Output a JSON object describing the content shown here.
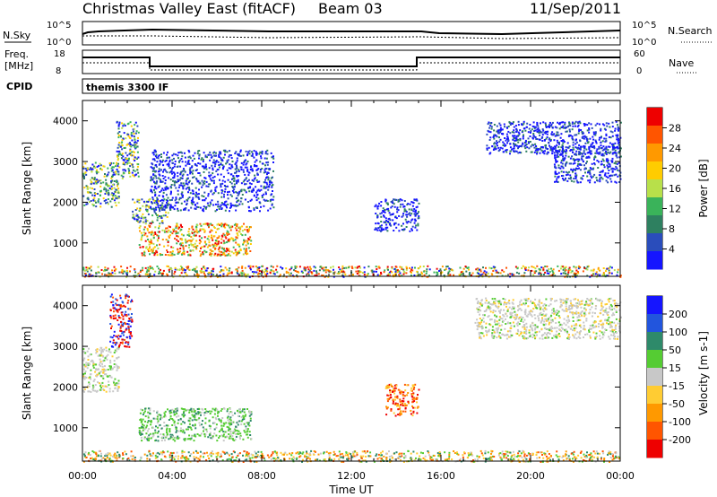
{
  "header": {
    "title": "Christmas Valley East (fitACF)",
    "beam": "Beam 03",
    "date": "11/Sep/2011"
  },
  "strip_panels": {
    "nsky": {
      "left_label": "N.Sky",
      "right_label": "N.Search",
      "left_ticks": [
        "10^5",
        "10^0"
      ],
      "right_ticks": [
        "10^5",
        "10^0"
      ]
    },
    "freq": {
      "left_label_1": "Freq.",
      "left_label_2": "[MHz]",
      "right_label": "Nave",
      "left_ticks": [
        "18",
        "8"
      ],
      "right_ticks": [
        "60",
        "0"
      ],
      "cpid_label": "CPID",
      "program": "themis 3300 IF"
    }
  },
  "colors": {
    "power": [
      "#1515ff",
      "#2a4dbb",
      "#2e8060",
      "#3ab35a",
      "#b8e04a",
      "#ffcc00",
      "#ff9900",
      "#ff5500",
      "#ee0000"
    ],
    "velocity": [
      "#1515ff",
      "#2255dd",
      "#2e8a6a",
      "#55cc33",
      "#c8c8c8",
      "#ffcc33",
      "#ff9900",
      "#ff5500",
      "#ee0000"
    ]
  },
  "chart_data": [
    {
      "type": "heatmap",
      "title": "Power",
      "xlabel": "Time UT",
      "ylabel": "Slant Range [km]",
      "xlim": [
        0,
        24
      ],
      "ylim": [
        180,
        4500
      ],
      "x_ticks": [
        "00:00",
        "04:00",
        "08:00",
        "12:00",
        "16:00",
        "20:00",
        "00:00"
      ],
      "y_ticks": [
        "1000",
        "2000",
        "3000",
        "4000"
      ],
      "colorbar_label": "Power [dB]",
      "colorbar_ticks": [
        "4",
        "8",
        "12",
        "16",
        "20",
        "24",
        "28"
      ],
      "regions": [
        {
          "t": [
            0.0,
            1.6
          ],
          "r": [
            1900,
            3000
          ],
          "level": "medium"
        },
        {
          "t": [
            1.5,
            2.5
          ],
          "r": [
            2600,
            4000
          ],
          "level": "medium"
        },
        {
          "t": [
            2.2,
            3.8
          ],
          "r": [
            1500,
            2100
          ],
          "level": "medium"
        },
        {
          "t": [
            2.5,
            7.5
          ],
          "r": [
            700,
            1500
          ],
          "level": "high"
        },
        {
          "t": [
            3.0,
            8.5
          ],
          "r": [
            1800,
            3300
          ],
          "level": "low"
        },
        {
          "t": [
            13.0,
            15.0
          ],
          "r": [
            1300,
            2100
          ],
          "level": "low"
        },
        {
          "t": [
            18.0,
            24.0
          ],
          "r": [
            3200,
            4000
          ],
          "level": "low"
        },
        {
          "t": [
            21.0,
            24.0
          ],
          "r": [
            2500,
            3400
          ],
          "level": "low"
        },
        {
          "t": [
            0.0,
            24.0
          ],
          "r": [
            180,
            450
          ],
          "level": "mixed"
        }
      ]
    },
    {
      "type": "heatmap",
      "title": "Velocity",
      "xlabel": "Time UT",
      "ylabel": "Slant Range [km]",
      "xlim": [
        0,
        24
      ],
      "ylim": [
        180,
        4500
      ],
      "x_ticks": [
        "00:00",
        "04:00",
        "08:00",
        "12:00",
        "16:00",
        "20:00",
        "00:00"
      ],
      "y_ticks": [
        "1000",
        "2000",
        "3000",
        "4000"
      ],
      "colorbar_label": "Velocity [m s-1]",
      "colorbar_ticks": [
        "200",
        "100",
        "50",
        "15",
        "-15",
        "-50",
        "-100",
        "-200"
      ],
      "regions": [
        {
          "t": [
            0.0,
            1.6
          ],
          "r": [
            1900,
            3000
          ],
          "velocity": "near zero"
        },
        {
          "t": [
            1.2,
            2.2
          ],
          "r": [
            3000,
            4300
          ],
          "velocity": "strong negative"
        },
        {
          "t": [
            2.5,
            7.5
          ],
          "r": [
            700,
            1500
          ],
          "velocity": "positive 15-50"
        },
        {
          "t": [
            13.5,
            15.0
          ],
          "r": [
            1300,
            2100
          ],
          "velocity": "negative 50-200"
        },
        {
          "t": [
            17.5,
            24.0
          ],
          "r": [
            3200,
            4200
          ],
          "velocity": "near zero"
        },
        {
          "t": [
            0.0,
            24.0
          ],
          "r": [
            180,
            450
          ],
          "velocity": "mixed"
        }
      ]
    }
  ]
}
